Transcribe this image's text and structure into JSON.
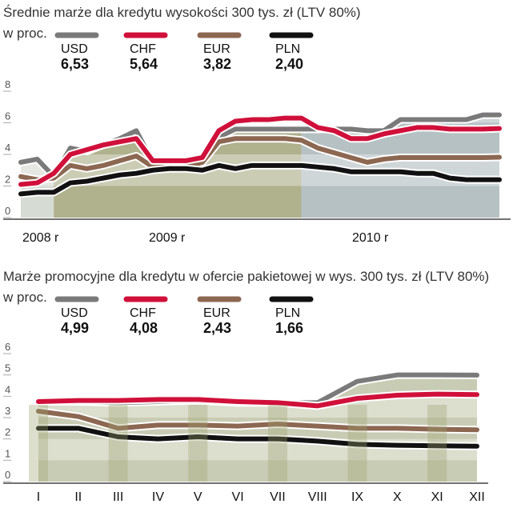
{
  "chart_data": [
    {
      "type": "line",
      "title": "Średnie marże dla kredytu wysokości 300 tys. zł (LTV 80%)",
      "subtitle": "w proc.",
      "ylim": [
        0,
        8
      ],
      "yticks": [
        "0",
        "2",
        "4",
        "6",
        "8"
      ],
      "xlabels": [
        "2008 r",
        "2009 r",
        "2010 r"
      ],
      "grid": false,
      "legend": [
        {
          "name": "USD",
          "value": "6,53",
          "color": "#7a7a7a"
        },
        {
          "name": "CHF",
          "value": "5,64",
          "color": "#d0103a"
        },
        {
          "name": "EUR",
          "value": "3,82",
          "color": "#8c6751"
        },
        {
          "name": "PLN",
          "value": "2,40",
          "color": "#111111"
        }
      ],
      "series": [
        {
          "name": "USD",
          "color": "#7a7a7a",
          "values": [
            3.5,
            3.7,
            2.6,
            4.4,
            4.2,
            4.6,
            5.0,
            5.5,
            3.5,
            3.5,
            3.5,
            3.7,
            5.1,
            5.6,
            5.6,
            5.6,
            5.6,
            5.6,
            5.6,
            5.6,
            5.6,
            5.5,
            5.5,
            6.2,
            6.2,
            6.2,
            6.2,
            6.2,
            6.5,
            6.5
          ]
        },
        {
          "name": "CHF",
          "color": "#d0103a",
          "values": [
            2.1,
            2.2,
            2.8,
            4.0,
            4.3,
            4.6,
            4.8,
            5.0,
            3.6,
            3.6,
            3.6,
            3.8,
            5.5,
            6.1,
            6.2,
            6.2,
            6.3,
            6.3,
            5.7,
            5.5,
            5.0,
            5.0,
            5.3,
            5.5,
            5.7,
            5.7,
            5.6,
            5.6,
            5.6,
            5.64
          ]
        },
        {
          "name": "EUR",
          "color": "#8c6751",
          "values": [
            2.6,
            2.4,
            2.5,
            3.3,
            3.1,
            3.3,
            3.6,
            3.9,
            3.2,
            3.2,
            3.2,
            3.5,
            4.8,
            5.0,
            5.0,
            5.0,
            5.0,
            4.9,
            4.4,
            4.1,
            3.8,
            3.5,
            3.7,
            3.8,
            3.8,
            3.8,
            3.8,
            3.8,
            3.8,
            3.82
          ]
        },
        {
          "name": "PLN",
          "color": "#111111",
          "values": [
            1.5,
            1.6,
            1.6,
            2.2,
            2.3,
            2.5,
            2.7,
            2.8,
            3.0,
            3.1,
            3.1,
            3.0,
            3.3,
            3.1,
            3.3,
            3.3,
            3.3,
            3.3,
            3.2,
            3.1,
            2.9,
            2.9,
            2.9,
            2.9,
            2.8,
            2.8,
            2.5,
            2.4,
            2.4,
            2.4
          ]
        }
      ]
    },
    {
      "type": "line",
      "title": "Marże promocyjne dla kredytu w ofercie pakietowej w wys. 300 tys. zł (LTV 80%)",
      "subtitle": "w proc.",
      "ylim": [
        0,
        6
      ],
      "yticks": [
        "0",
        "1",
        "2",
        "3",
        "4",
        "5",
        "6"
      ],
      "categories": [
        "I",
        "II",
        "III",
        "IV",
        "V",
        "VI",
        "VII",
        "VIII",
        "IX",
        "X",
        "XI",
        "XII"
      ],
      "grid": false,
      "legend": [
        {
          "name": "USD",
          "value": "4,99",
          "color": "#7a7a7a"
        },
        {
          "name": "CHF",
          "value": "4,08",
          "color": "#d0103a"
        },
        {
          "name": "EUR",
          "value": "2,43",
          "color": "#8c6751"
        },
        {
          "name": "PLN",
          "value": "1,66",
          "color": "#111111"
        }
      ],
      "series": [
        {
          "name": "USD",
          "color": "#7a7a7a",
          "values": [
            3.75,
            3.75,
            3.7,
            3.75,
            3.8,
            3.7,
            3.7,
            3.7,
            4.7,
            5.0,
            5.0,
            4.99
          ]
        },
        {
          "name": "CHF",
          "color": "#d0103a",
          "values": [
            3.75,
            3.8,
            3.8,
            3.85,
            3.85,
            3.75,
            3.7,
            3.55,
            3.9,
            4.05,
            4.1,
            4.08
          ]
        },
        {
          "name": "EUR",
          "color": "#8c6751",
          "values": [
            3.3,
            3.05,
            2.5,
            2.65,
            2.65,
            2.6,
            2.7,
            2.6,
            2.5,
            2.5,
            2.45,
            2.43
          ]
        },
        {
          "name": "PLN",
          "color": "#111111",
          "values": [
            2.5,
            2.5,
            2.1,
            2.0,
            2.1,
            2.0,
            2.0,
            1.9,
            1.75,
            1.7,
            1.68,
            1.66
          ]
        }
      ]
    }
  ]
}
